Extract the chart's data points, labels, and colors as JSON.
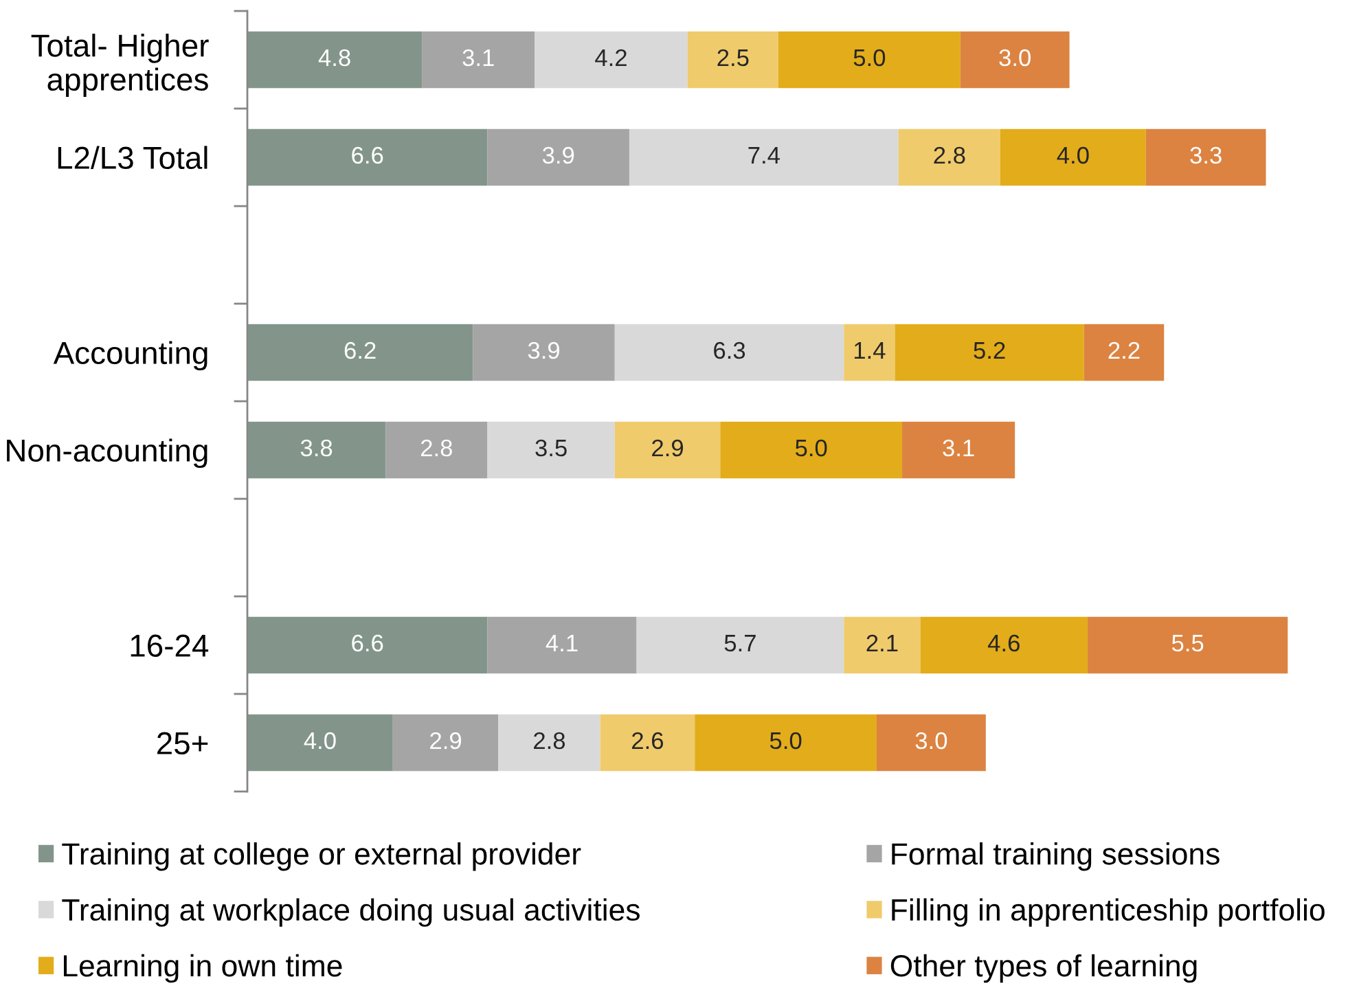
{
  "chart_data": {
    "type": "bar",
    "orientation": "horizontal",
    "stacked": true,
    "legend": "bottom",
    "tick_labels": "y",
    "categories": [
      "Total- Higher\napprentices",
      "L2/L3 Total",
      null,
      "Accounting",
      "Non-acounting",
      null,
      "16-24",
      "25+"
    ],
    "series": [
      {
        "name": "Training at college or external provider",
        "color": "#83958a",
        "values": [
          4.8,
          6.6,
          null,
          6.2,
          3.8,
          null,
          6.6,
          4.0
        ],
        "value_labels": [
          "4.8",
          "6.6",
          null,
          "6.2",
          "3.8",
          null,
          "6.6",
          "4.0"
        ]
      },
      {
        "name": "Formal training sessions",
        "color": "#a5a5a5",
        "values": [
          3.1,
          3.9,
          null,
          3.9,
          2.8,
          null,
          4.1,
          2.9
        ],
        "value_labels": [
          "3.1",
          "3.9",
          null,
          "3.9",
          "2.8",
          null,
          "4.1",
          "2.9"
        ]
      },
      {
        "name": "Training at workplace doing usual activities",
        "color": "#d9d9d9",
        "values": [
          4.2,
          7.4,
          null,
          6.3,
          3.5,
          null,
          5.7,
          2.8
        ],
        "value_labels": [
          "4.2",
          "7.4",
          null,
          "6.3",
          "3.5",
          null,
          "5.7",
          "2.8"
        ]
      },
      {
        "name": "Filling in apprenticeship portfolio",
        "color": "#f0cb6c",
        "values": [
          2.5,
          2.8,
          null,
          1.4,
          2.9,
          null,
          2.1,
          2.6
        ],
        "value_labels": [
          "2.5",
          "2.8",
          null,
          "1.4",
          "2.9",
          null,
          "2.1",
          "2.6"
        ]
      },
      {
        "name": "Learning in own time",
        "color": "#e3ac1a",
        "values": [
          5.0,
          4.0,
          null,
          5.2,
          5.0,
          null,
          4.6,
          5.0
        ],
        "value_labels": [
          "5.0",
          "4.0",
          null,
          "5.2",
          "5.0",
          null,
          "4.6",
          "5.0"
        ]
      },
      {
        "name": "Other types of learning",
        "color": "#dc8341",
        "values": [
          3.0,
          3.3,
          null,
          2.2,
          3.1,
          null,
          5.5,
          3.0
        ],
        "value_labels": [
          "3.0",
          "3.3",
          null,
          "2.2",
          "3.1",
          null,
          "5.5",
          "3.0"
        ]
      }
    ]
  }
}
